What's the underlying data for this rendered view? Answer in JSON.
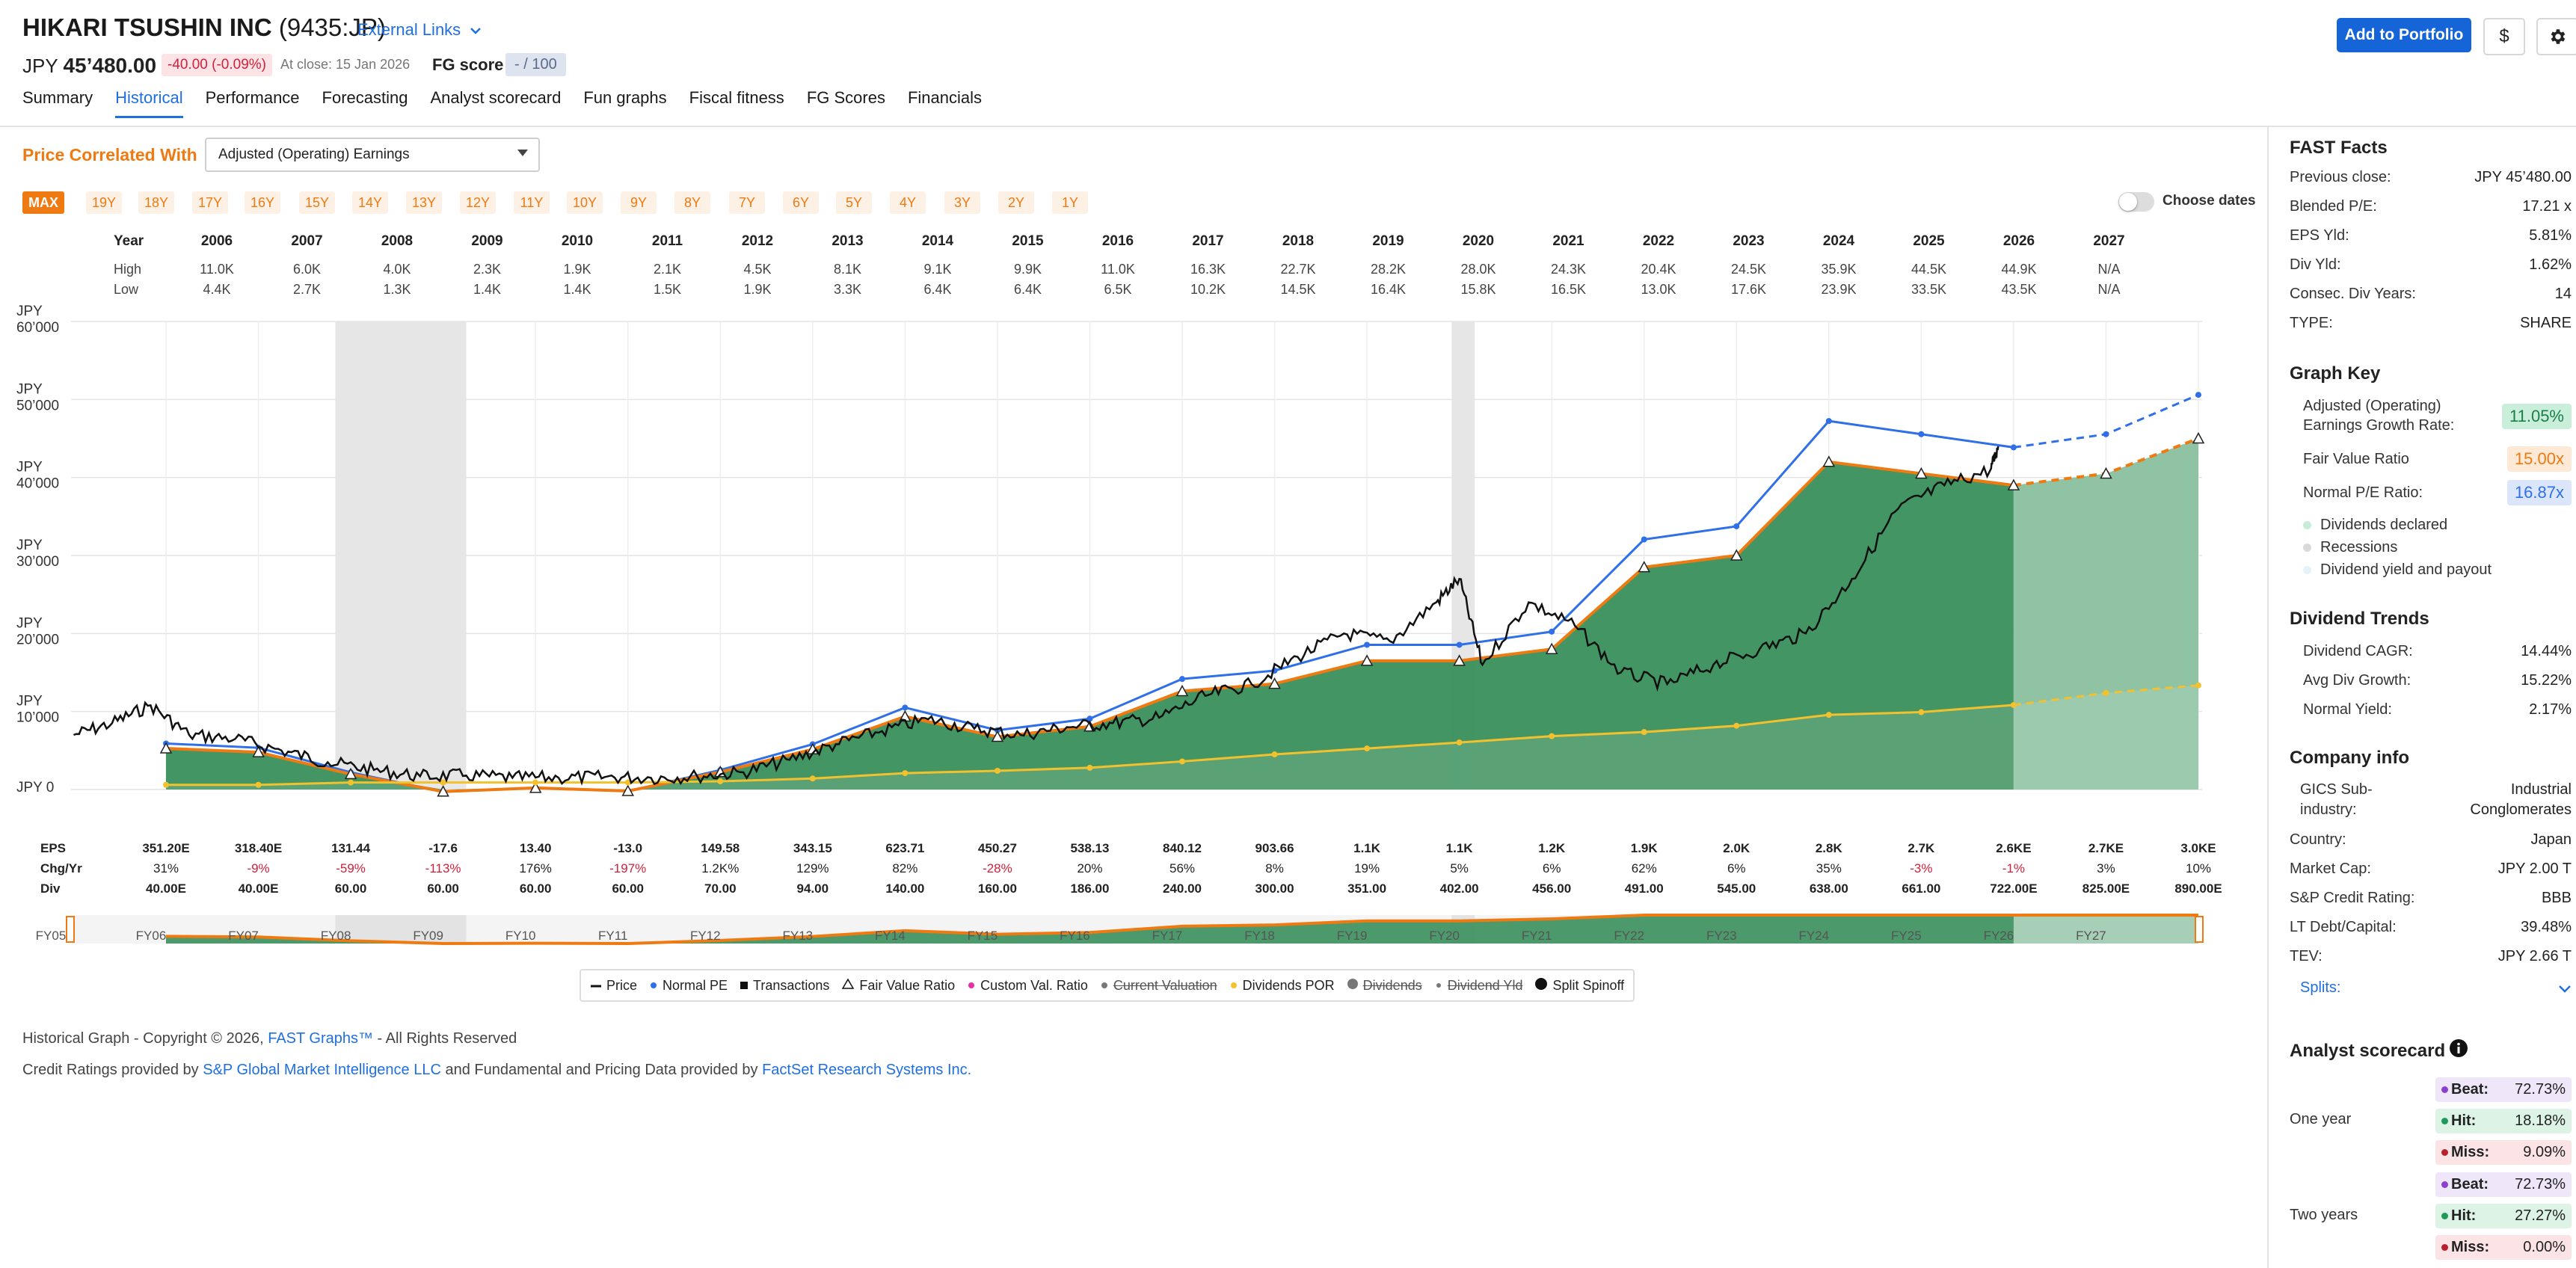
{
  "header": {
    "company": "HIKARI TSUSHIN INC",
    "ticker": "(9435:JP)",
    "external_links": "External Links",
    "currency": "JPY",
    "price": "45’480.00",
    "change": "-40.00 (-0.09%)",
    "close_date": "At close: 15 Jan 2026",
    "fg_score_label": "FG score",
    "fg_score_value": "- / 100",
    "add_portfolio": "Add to Portfolio",
    "dollar_symbol": "$"
  },
  "tabs": [
    "Summary",
    "Historical",
    "Performance",
    "Forecasting",
    "Analyst scorecard",
    "Fun graphs",
    "Fiscal fitness",
    "FG Scores",
    "Financials"
  ],
  "active_tab": "Historical",
  "controls": {
    "price_correlated_label": "Price Correlated With",
    "metric": "Adjusted (Operating) Earnings",
    "ranges": [
      "MAX",
      "19Y",
      "18Y",
      "17Y",
      "16Y",
      "15Y",
      "14Y",
      "13Y",
      "12Y",
      "11Y",
      "10Y",
      "9Y",
      "8Y",
      "7Y",
      "6Y",
      "5Y",
      "4Y",
      "3Y",
      "2Y",
      "1Y"
    ],
    "active_range": "MAX",
    "choose_dates": "Choose dates"
  },
  "hilo": {
    "labels": {
      "year": "Year",
      "high": "High",
      "low": "Low"
    },
    "years": [
      "2006",
      "2007",
      "2008",
      "2009",
      "2010",
      "2011",
      "2012",
      "2013",
      "2014",
      "2015",
      "2016",
      "2017",
      "2018",
      "2019",
      "2020",
      "2021",
      "2022",
      "2023",
      "2024",
      "2025",
      "2026",
      "2027"
    ],
    "high": [
      "11.0K",
      "6.0K",
      "4.0K",
      "2.3K",
      "1.9K",
      "2.1K",
      "4.5K",
      "8.1K",
      "9.1K",
      "9.9K",
      "11.0K",
      "16.3K",
      "22.7K",
      "28.2K",
      "28.0K",
      "24.3K",
      "20.4K",
      "24.5K",
      "35.9K",
      "44.5K",
      "44.9K",
      "N/A"
    ],
    "low": [
      "4.4K",
      "2.7K",
      "1.3K",
      "1.4K",
      "1.4K",
      "1.5K",
      "1.9K",
      "3.3K",
      "6.4K",
      "6.4K",
      "6.5K",
      "10.2K",
      "14.5K",
      "16.4K",
      "15.8K",
      "16.5K",
      "13.0K",
      "17.6K",
      "23.9K",
      "33.5K",
      "43.5K",
      "N/A"
    ]
  },
  "chart_data": {
    "type": "line",
    "title": "",
    "y_unit": "JPY",
    "y_ticks": [
      "JPY 60’000",
      "JPY 50’000",
      "JPY 40’000",
      "JPY 30’000",
      "JPY 20’000",
      "JPY 10’000",
      "JPY 0"
    ],
    "ylim": [
      0,
      60000
    ],
    "x_label": "FYDate",
    "x_ticks": [
      "3/06",
      "3/07",
      "3/08",
      "3/09",
      "3/10",
      "3/11",
      "3/12",
      "3/13",
      "3/14",
      "3/15",
      "3/16",
      "3/17",
      "3/18",
      "3/19",
      "3/20",
      "3/21",
      "3/22",
      "3/23",
      "3/24",
      "3/25",
      "3/26",
      "3/27",
      "3/28"
    ],
    "recessions": [
      [
        "2008-01",
        "2009-06"
      ],
      [
        "2020-02",
        "2020-05"
      ]
    ],
    "series": [
      {
        "name": "Fair Value Ratio",
        "color": "#ef7a12",
        "x": [
          "3/06",
          "3/07",
          "3/08",
          "3/09",
          "3/10",
          "3/11",
          "3/12",
          "3/13",
          "3/14",
          "3/15",
          "3/16",
          "3/17",
          "3/18",
          "3/19",
          "3/20",
          "3/21",
          "3/22",
          "3/23",
          "3/24",
          "3/25",
          "3/26",
          "3/27",
          "3/28"
        ],
        "values": [
          5268,
          4776,
          1972,
          -264,
          201,
          -195,
          2244,
          5147,
          9356,
          6754,
          8072,
          12602,
          13555,
          16500,
          16500,
          18000,
          28500,
          30000,
          42000,
          40500,
          39000,
          40500,
          45000
        ]
      },
      {
        "name": "Normal PE",
        "color": "#2f6fe8",
        "x": [
          "3/06",
          "3/07",
          "3/08",
          "3/09",
          "3/10",
          "3/11",
          "3/12",
          "3/13",
          "3/14",
          "3/15",
          "3/16",
          "3/17",
          "3/18",
          "3/19",
          "3/20",
          "3/21",
          "3/22",
          "3/23",
          "3/24",
          "3/25",
          "3/26",
          "3/27",
          "3/28"
        ],
        "values": [
          5900,
          5350,
          2200,
          -300,
          230,
          -220,
          2500,
          5800,
          10500,
          7600,
          9080,
          14170,
          15240,
          18550,
          18550,
          20240,
          32060,
          33740,
          47240,
          45550,
          43860,
          45550,
          50600
        ]
      },
      {
        "name": "Dividends POR",
        "color": "#f2c12e",
        "x": [
          "3/06",
          "3/07",
          "3/08",
          "3/09",
          "3/10",
          "3/11",
          "3/12",
          "3/13",
          "3/14",
          "3/15",
          "3/16",
          "3/17",
          "3/18",
          "3/19",
          "3/20",
          "3/21",
          "3/22",
          "3/23",
          "3/24",
          "3/25",
          "3/26",
          "3/27",
          "3/28"
        ],
        "values": [
          600,
          600,
          900,
          900,
          900,
          900,
          1050,
          1410,
          2100,
          2400,
          2790,
          3600,
          4500,
          5265,
          6030,
          6840,
          7365,
          8175,
          9570,
          9915,
          10830,
          12375,
          13350
        ]
      },
      {
        "name": "Price",
        "color": "#111111",
        "x": [
          "3/05",
          "8/05",
          "1/06",
          "6/06",
          "12/06",
          "6/07",
          "12/07",
          "6/08",
          "12/08",
          "6/09",
          "12/09",
          "6/10",
          "12/10",
          "6/11",
          "12/11",
          "6/12",
          "12/12",
          "6/13",
          "12/13",
          "6/14",
          "12/14",
          "6/15",
          "12/15",
          "6/16",
          "12/16",
          "6/17",
          "12/17",
          "6/18",
          "12/18",
          "6/19",
          "12/19",
          "3/20",
          "6/20",
          "12/20",
          "6/21",
          "12/21",
          "6/22",
          "12/22",
          "6/23",
          "12/23",
          "6/24",
          "12/24",
          "6/25",
          "12/25",
          "1/26"
        ],
        "values": [
          7000,
          8500,
          10800,
          7000,
          6500,
          5000,
          3500,
          2500,
          1700,
          1800,
          1500,
          1500,
          1600,
          1500,
          1700,
          2200,
          3800,
          5800,
          7500,
          9000,
          7800,
          7000,
          8000,
          8500,
          9200,
          12000,
          13500,
          17000,
          20000,
          19000,
          24000,
          27000,
          16000,
          24000,
          21000,
          15000,
          13500,
          16000,
          18000,
          20000,
          27000,
          36000,
          39000,
          41000,
          44000
        ]
      }
    ],
    "eps": [
      "351.20E",
      "318.40E",
      "131.44",
      "-17.6",
      "13.40",
      "-13.0",
      "149.58",
      "343.15",
      "623.71",
      "450.27",
      "538.13",
      "840.12",
      "903.66",
      "1.1K",
      "1.1K",
      "1.2K",
      "1.9K",
      "2.0K",
      "2.8K",
      "2.7K",
      "2.6KE",
      "2.7KE",
      "3.0KE"
    ],
    "chg_yr": [
      "31%",
      "-9%",
      "-59%",
      "-113%",
      "176%",
      "-197%",
      "1.2K%",
      "129%",
      "82%",
      "-28%",
      "20%",
      "56%",
      "8%",
      "19%",
      "5%",
      "6%",
      "62%",
      "6%",
      "35%",
      "-3%",
      "-1%",
      "3%",
      "10%"
    ],
    "div": [
      "40.00E",
      "40.00E",
      "60.00",
      "60.00",
      "60.00",
      "60.00",
      "70.00",
      "94.00",
      "140.00",
      "160.00",
      "186.00",
      "240.00",
      "300.00",
      "351.00",
      "402.00",
      "456.00",
      "491.00",
      "545.00",
      "638.00",
      "661.00",
      "722.00E",
      "825.00E",
      "890.00E"
    ],
    "row_labels": {
      "eps": "EPS",
      "chg": "Chg/Yr",
      "div": "Div"
    }
  },
  "navigator": {
    "labels": [
      "FY05",
      "FY06",
      "FY07",
      "FY08",
      "FY09",
      "FY10",
      "FY11",
      "FY12",
      "FY13",
      "FY14",
      "FY15",
      "FY16",
      "FY17",
      "FY18",
      "FY19",
      "FY20",
      "FY21",
      "FY22",
      "FY23",
      "FY24",
      "FY25",
      "FY26",
      "FY27"
    ]
  },
  "legend": [
    "Price",
    "Normal PE",
    "Transactions",
    "Fair Value Ratio",
    "Custom Val. Ratio",
    "Current Valuation",
    "Dividends POR",
    "Dividends",
    "Dividend Yld",
    "Split Spinoff"
  ],
  "footer": {
    "copyright_pre": "Historical Graph - Copyright © 2026, ",
    "copyright_link": "FAST Graphs™",
    "copyright_post": " - All Rights Reserved",
    "credits_pre": "Credit Ratings provided by ",
    "credits_link1": "S&P Global Market Intelligence LLC",
    "credits_mid": " and Fundamental and Pricing Data provided by ",
    "credits_link2": "FactSet Research Systems Inc."
  },
  "panel": {
    "fast_facts_title": "FAST Facts",
    "facts": [
      {
        "label": "Previous close:",
        "value": "JPY 45’480.00"
      },
      {
        "label": "Blended P/E:",
        "value": "17.21 x"
      },
      {
        "label": "EPS Yld:",
        "value": "5.81%"
      },
      {
        "label": "Div Yld:",
        "value": "1.62%"
      },
      {
        "label": "Consec. Div Years:",
        "value": "14"
      },
      {
        "label": "TYPE:",
        "value": "SHARE"
      }
    ],
    "graph_key_title": "Graph Key",
    "gk_growth_label": "Adjusted (Operating) Earnings Growth Rate:",
    "gk_growth_label_1": "Adjusted (Operating)",
    "gk_growth_label_2": "Earnings Growth Rate:",
    "gk_growth_value": "11.05%",
    "gk_fv_label": "Fair Value Ratio",
    "gk_fv_value": "15.00x",
    "gk_pe_label": "Normal P/E Ratio:",
    "gk_pe_value": "16.87x",
    "gk_toggles": [
      "Dividends declared",
      "Recessions",
      "Dividend yield and payout"
    ],
    "div_trends_title": "Dividend Trends",
    "div_trends": [
      {
        "label": "Dividend CAGR:",
        "value": "14.44%"
      },
      {
        "label": "Avg Div Growth:",
        "value": "15.22%"
      },
      {
        "label": "Normal Yield:",
        "value": "2.17%"
      }
    ],
    "company_info_title": "Company info",
    "gics_label_1": "GICS Sub-",
    "gics_label_2": "industry:",
    "gics_value_1": "Industrial",
    "gics_value_2": "Conglomerates",
    "company_info": [
      {
        "label": "Country:",
        "value": "Japan"
      },
      {
        "label": "Market Cap:",
        "value": "JPY 2.00 T"
      },
      {
        "label": "S&P Credit Rating:",
        "value": "BBB"
      },
      {
        "label": "LT Debt/Capital:",
        "value": "39.48%"
      },
      {
        "label": "TEV:",
        "value": "JPY 2.66 T"
      }
    ],
    "splits_label": "Splits:",
    "analyst_title": "Analyst scorecard",
    "one_year_label": "One year",
    "two_years_label": "Two years",
    "one_year": [
      {
        "k": "Beat:",
        "v": "72.73%"
      },
      {
        "k": "Hit:",
        "v": "18.18%"
      },
      {
        "k": "Miss:",
        "v": "9.09%"
      }
    ],
    "two_years": [
      {
        "k": "Beat:",
        "v": "72.73%"
      },
      {
        "k": "Hit:",
        "v": "27.27%"
      },
      {
        "k": "Miss:",
        "v": "0.00%"
      }
    ]
  }
}
